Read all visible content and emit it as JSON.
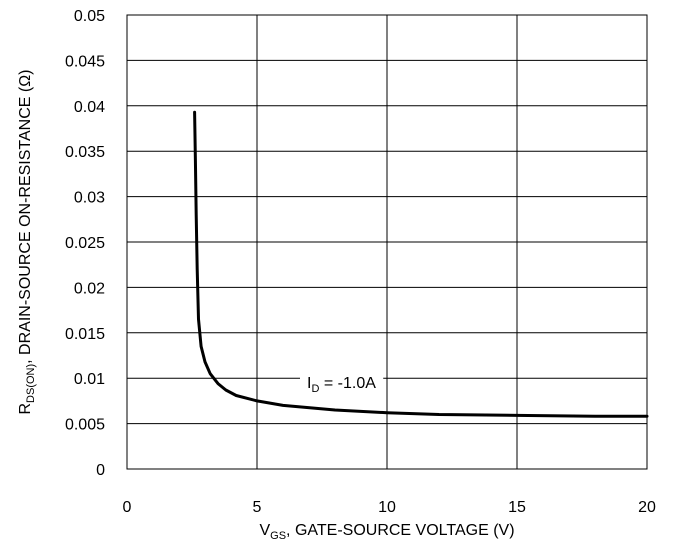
{
  "chart_data": {
    "type": "line",
    "title": "",
    "xlabel": {
      "main": "V",
      "sub": "GS",
      "rest": ", GATE-SOURCE VOLTAGE (V)"
    },
    "ylabel": {
      "main": "R",
      "sub": "DS(ON)",
      "rest": ", DRAIN-SOURCE ON-RESISTANCE (Ω)"
    },
    "xlim": [
      0,
      20
    ],
    "ylim": [
      0,
      0.05
    ],
    "xticks": [
      "0",
      "5",
      "10",
      "15",
      "20"
    ],
    "yticks": [
      "0",
      "0.005",
      "0.01",
      "0.015",
      "0.02",
      "0.025",
      "0.03",
      "0.035",
      "0.04",
      "0.045",
      "0.05"
    ],
    "grid": true,
    "annotation": {
      "main": "I",
      "sub": "D",
      "rest": " = -1.0A"
    },
    "series": [
      {
        "x": [
          2.6,
          2.63,
          2.66,
          2.7,
          2.75,
          2.85,
          3.0,
          3.2,
          3.5,
          3.8,
          4.2,
          5.0,
          6.0,
          8.0,
          10.0,
          12.0,
          15.0,
          18.0,
          20.0
        ],
        "y": [
          0.0393,
          0.034,
          0.028,
          0.022,
          0.0165,
          0.0135,
          0.0118,
          0.0105,
          0.0094,
          0.0087,
          0.0081,
          0.0075,
          0.007,
          0.0065,
          0.0062,
          0.006,
          0.0059,
          0.0058,
          0.0058
        ]
      }
    ]
  }
}
